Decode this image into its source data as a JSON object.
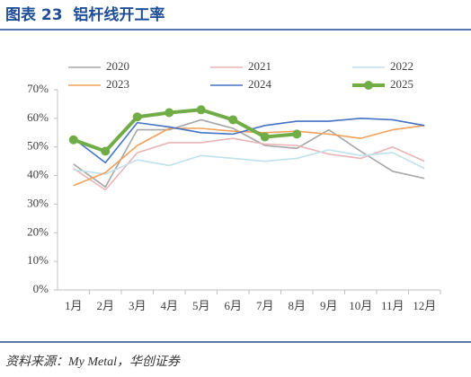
{
  "chart_data": {
    "type": "line",
    "title": "图表 23  铝杆线开工率",
    "source": "资料来源：My Metal，华创证券",
    "categories": [
      "1月",
      "2月",
      "3月",
      "4月",
      "5月",
      "6月",
      "7月",
      "8月",
      "9月",
      "10月",
      "11月",
      "12月"
    ],
    "ylim": [
      0,
      70
    ],
    "yticks": [
      {
        "value": 0,
        "label": "0%"
      },
      {
        "value": 10,
        "label": "10%"
      },
      {
        "value": 20,
        "label": "20%"
      },
      {
        "value": 30,
        "label": "30%"
      },
      {
        "value": 40,
        "label": "40%"
      },
      {
        "value": 50,
        "label": "50%"
      },
      {
        "value": 60,
        "label": "60%"
      },
      {
        "value": 70,
        "label": "70%"
      }
    ],
    "grid": false,
    "legend": "top",
    "series": [
      {
        "name": "2020",
        "color": "#a6a6a6",
        "values": [
          44,
          36,
          56,
          56,
          59.5,
          56.5,
          50.5,
          49.5,
          56,
          48.5,
          41.5,
          39
        ]
      },
      {
        "name": "2021",
        "color": "#eab4b6",
        "values": [
          42.5,
          35,
          48,
          51.5,
          51.5,
          53,
          51,
          50.5,
          47.5,
          46,
          50,
          45
        ]
      },
      {
        "name": "2022",
        "color": "#bfe1ec",
        "values": [
          42,
          40.5,
          45.5,
          43.5,
          47,
          46,
          45,
          46,
          49,
          47,
          48,
          42.5
        ]
      },
      {
        "name": "2023",
        "color": "#f3a05a",
        "values": [
          36.5,
          41,
          50.5,
          56.5,
          56.5,
          55.5,
          55,
          55.5,
          54.5,
          53,
          56,
          57.5
        ]
      },
      {
        "name": "2024",
        "color": "#4472c4",
        "values": [
          53,
          44.5,
          58.5,
          57,
          55,
          54.5,
          57.5,
          59,
          59,
          60,
          59.5,
          57.5
        ]
      },
      {
        "name": "2025",
        "color": "#70ad47",
        "values": [
          52.5,
          48.5,
          60.5,
          62,
          63,
          59.5,
          53.5,
          54.5,
          null,
          null,
          null,
          null
        ]
      }
    ]
  }
}
